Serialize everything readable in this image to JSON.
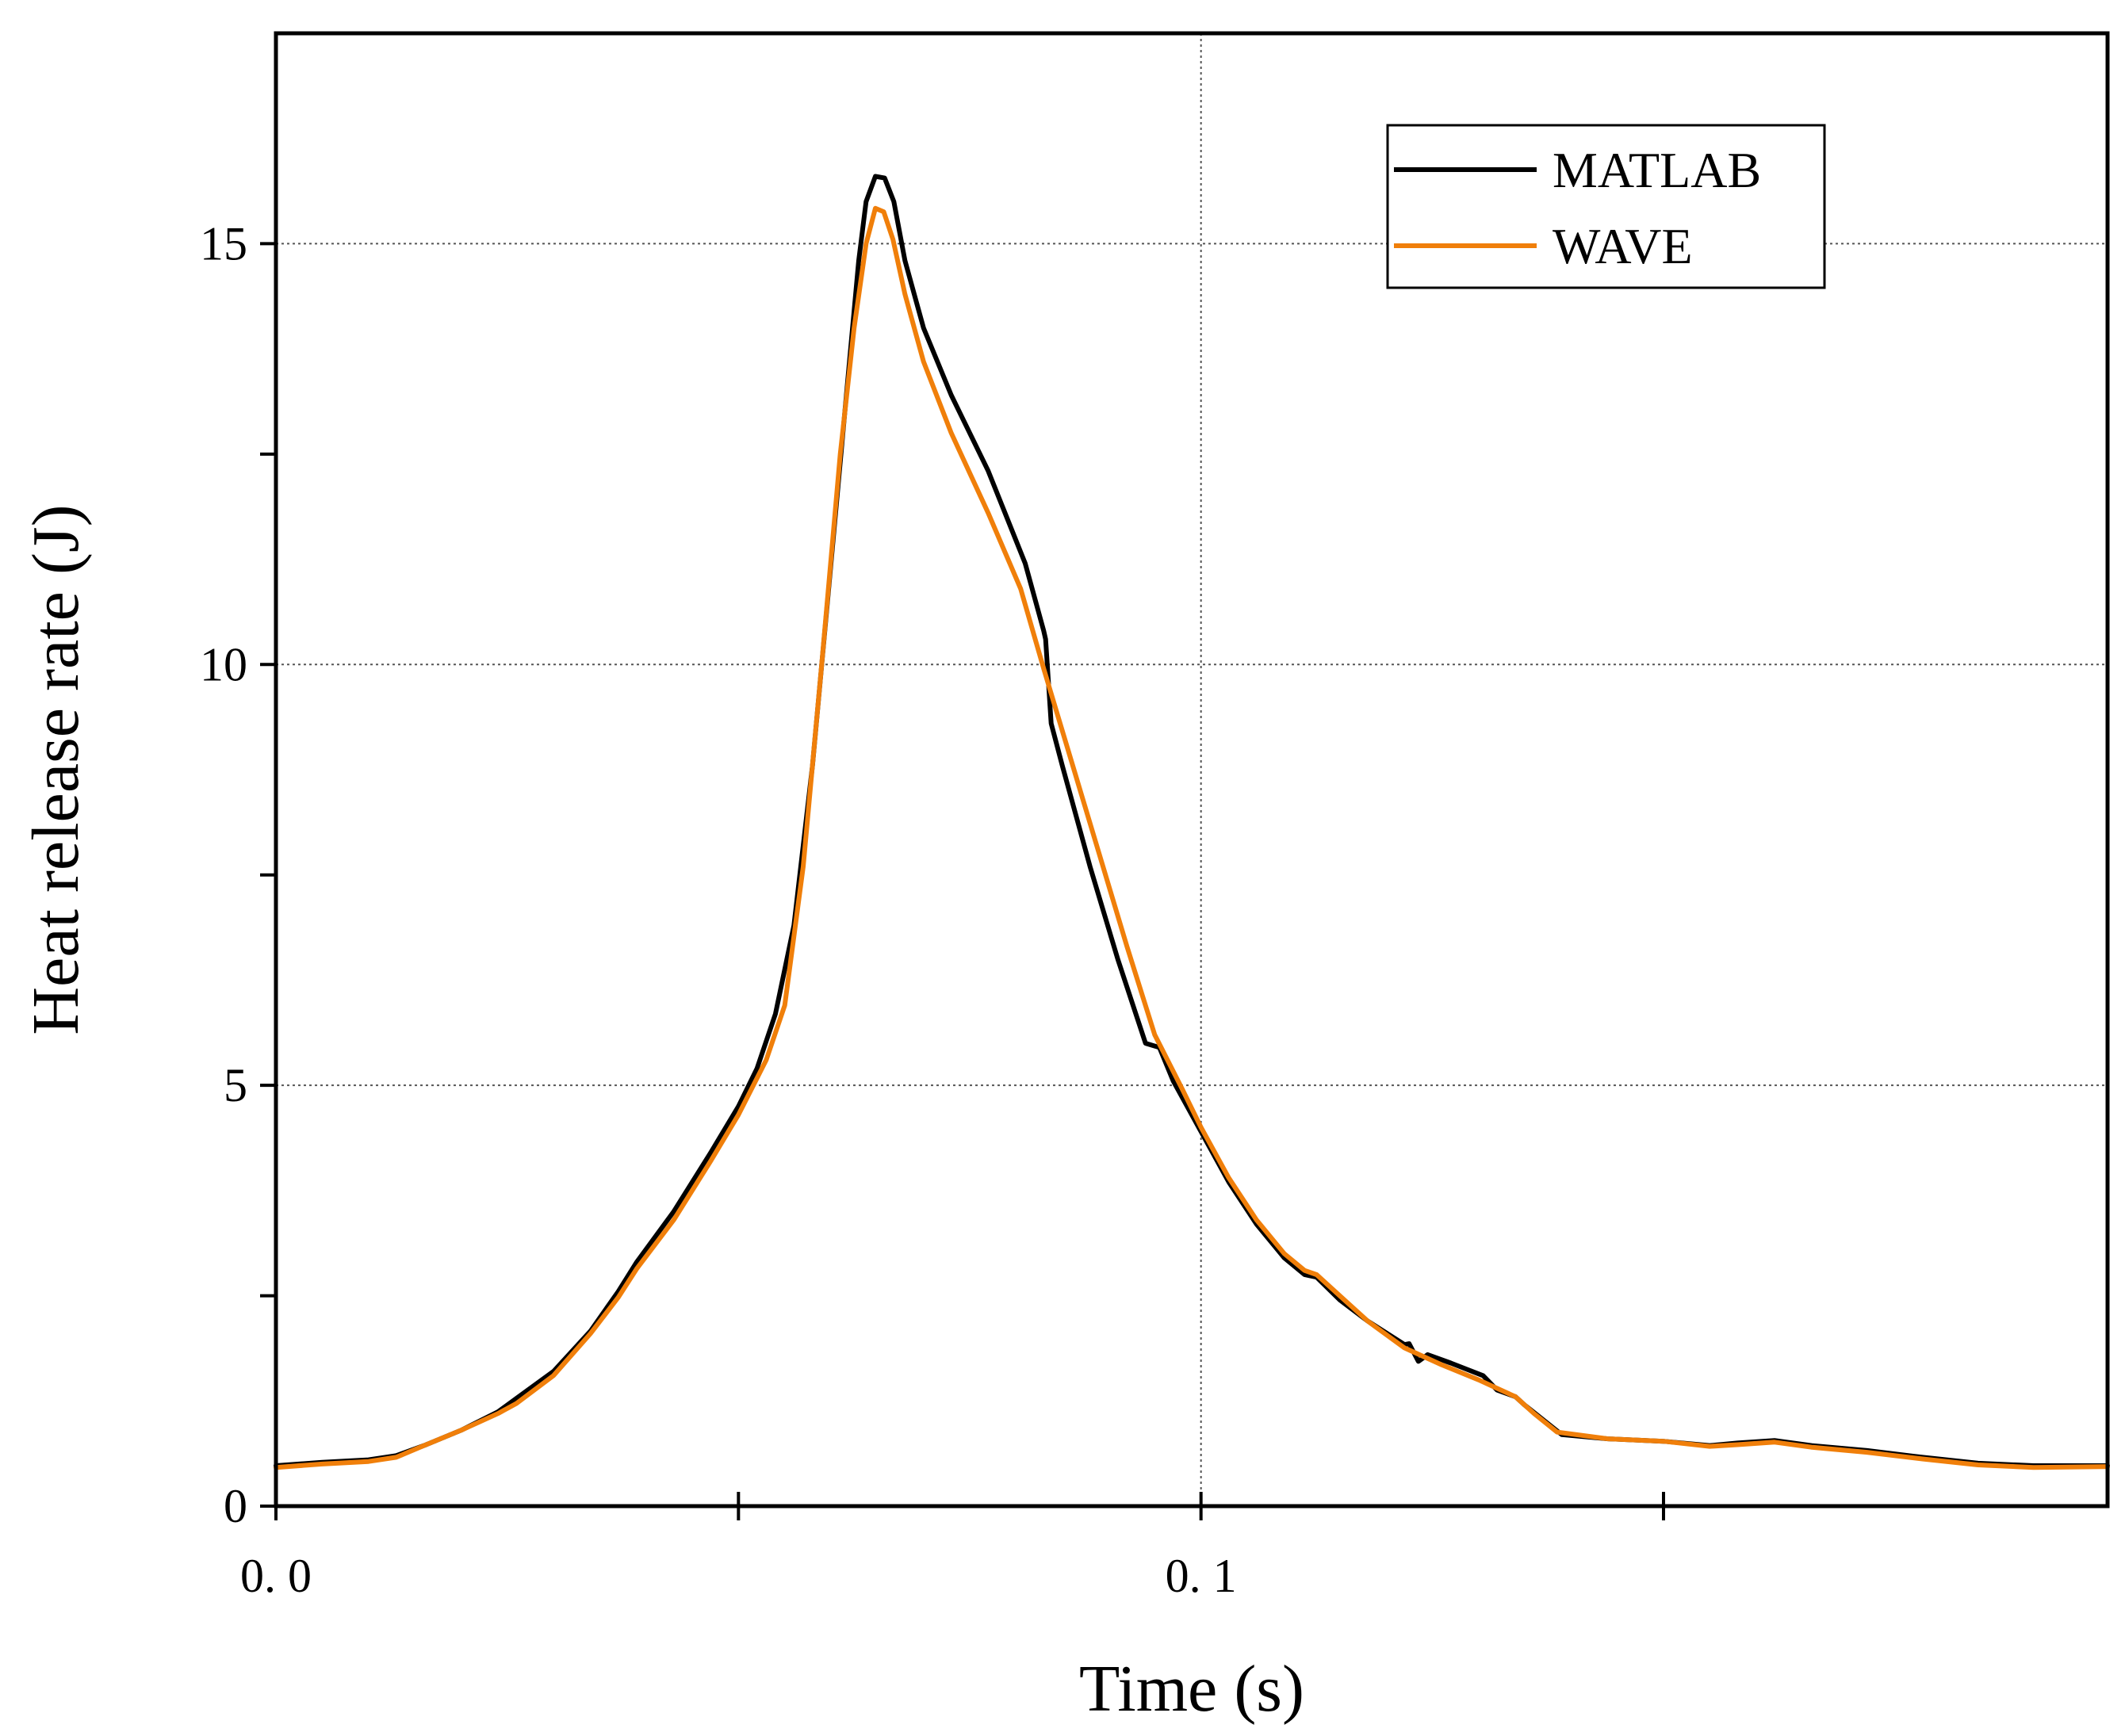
{
  "chart_data": {
    "type": "line",
    "title": "",
    "xlabel": "Time (s)",
    "ylabel": "Heat release rate (J)",
    "xlim": [
      0.0,
      0.198
    ],
    "ylim": [
      0,
      17.5
    ],
    "x_ticks": [
      0.0,
      0.05,
      0.1,
      0.15
    ],
    "x_tick_labels": [
      {
        "value": 0.0,
        "label": "0. 0"
      },
      {
        "value": 0.1,
        "label": "0. 1"
      }
    ],
    "y_ticks": [
      0,
      2.5,
      5,
      7.5,
      10,
      12.5,
      15
    ],
    "y_tick_labels": [
      {
        "value": 0,
        "label": "0"
      },
      {
        "value": 5,
        "label": "5"
      },
      {
        "value": 10,
        "label": "10"
      },
      {
        "value": 15,
        "label": "15"
      }
    ],
    "grid": {
      "x": [
        0.1
      ],
      "y": [
        5,
        10,
        15
      ],
      "style": "dotted"
    },
    "legend": {
      "position": "top-right"
    },
    "series": [
      {
        "name": "MATLAB",
        "color": "#000000",
        "points": [
          [
            0.0,
            0.48
          ],
          [
            0.005,
            0.52
          ],
          [
            0.01,
            0.55
          ],
          [
            0.013,
            0.6
          ],
          [
            0.016,
            0.72
          ],
          [
            0.02,
            0.9
          ],
          [
            0.024,
            1.12
          ],
          [
            0.026,
            1.28
          ],
          [
            0.03,
            1.6
          ],
          [
            0.034,
            2.08
          ],
          [
            0.037,
            2.55
          ],
          [
            0.039,
            2.9
          ],
          [
            0.043,
            3.5
          ],
          [
            0.047,
            4.2
          ],
          [
            0.05,
            4.75
          ],
          [
            0.052,
            5.2
          ],
          [
            0.054,
            5.85
          ],
          [
            0.056,
            6.9
          ],
          [
            0.058,
            8.8
          ],
          [
            0.06,
            11.2
          ],
          [
            0.062,
            13.6
          ],
          [
            0.063,
            14.8
          ],
          [
            0.0638,
            15.5
          ],
          [
            0.0648,
            15.8
          ],
          [
            0.0658,
            15.78
          ],
          [
            0.0668,
            15.5
          ],
          [
            0.068,
            14.8
          ],
          [
            0.07,
            14.0
          ],
          [
            0.073,
            13.2
          ],
          [
            0.077,
            12.3
          ],
          [
            0.081,
            11.2
          ],
          [
            0.083,
            10.4
          ],
          [
            0.0832,
            10.3
          ],
          [
            0.0838,
            9.3
          ],
          [
            0.085,
            8.8
          ],
          [
            0.088,
            7.6
          ],
          [
            0.091,
            6.5
          ],
          [
            0.094,
            5.5
          ],
          [
            0.0955,
            5.45
          ],
          [
            0.097,
            5.05
          ],
          [
            0.1,
            4.45
          ],
          [
            0.103,
            3.85
          ],
          [
            0.106,
            3.35
          ],
          [
            0.109,
            2.95
          ],
          [
            0.1112,
            2.75
          ],
          [
            0.1125,
            2.72
          ],
          [
            0.115,
            2.45
          ],
          [
            0.118,
            2.2
          ],
          [
            0.122,
            1.92
          ],
          [
            0.1225,
            1.93
          ],
          [
            0.1235,
            1.72
          ],
          [
            0.1245,
            1.8
          ],
          [
            0.127,
            1.7
          ],
          [
            0.1305,
            1.55
          ],
          [
            0.132,
            1.38
          ],
          [
            0.134,
            1.3
          ],
          [
            0.135,
            1.2
          ],
          [
            0.139,
            0.85
          ],
          [
            0.144,
            0.8
          ],
          [
            0.15,
            0.77
          ],
          [
            0.155,
            0.72
          ],
          [
            0.158,
            0.75
          ],
          [
            0.162,
            0.78
          ],
          [
            0.166,
            0.72
          ],
          [
            0.172,
            0.66
          ],
          [
            0.178,
            0.58
          ],
          [
            0.184,
            0.51
          ],
          [
            0.19,
            0.48
          ],
          [
            0.198,
            0.48
          ]
        ]
      },
      {
        "name": "WAVE",
        "color": "#f07f0a",
        "points": [
          [
            0.0,
            0.46
          ],
          [
            0.005,
            0.5
          ],
          [
            0.01,
            0.53
          ],
          [
            0.013,
            0.58
          ],
          [
            0.016,
            0.72
          ],
          [
            0.02,
            0.9
          ],
          [
            0.024,
            1.1
          ],
          [
            0.026,
            1.22
          ],
          [
            0.03,
            1.55
          ],
          [
            0.034,
            2.05
          ],
          [
            0.037,
            2.48
          ],
          [
            0.039,
            2.82
          ],
          [
            0.043,
            3.4
          ],
          [
            0.047,
            4.1
          ],
          [
            0.05,
            4.65
          ],
          [
            0.053,
            5.3
          ],
          [
            0.055,
            5.95
          ],
          [
            0.057,
            7.6
          ],
          [
            0.059,
            10.0
          ],
          [
            0.061,
            12.5
          ],
          [
            0.0625,
            14.0
          ],
          [
            0.0638,
            15.0
          ],
          [
            0.0648,
            15.42
          ],
          [
            0.0657,
            15.38
          ],
          [
            0.0667,
            15.05
          ],
          [
            0.068,
            14.4
          ],
          [
            0.07,
            13.6
          ],
          [
            0.073,
            12.75
          ],
          [
            0.077,
            11.8
          ],
          [
            0.0805,
            10.9
          ],
          [
            0.083,
            9.95
          ],
          [
            0.086,
            8.85
          ],
          [
            0.089,
            7.75
          ],
          [
            0.092,
            6.65
          ],
          [
            0.095,
            5.6
          ],
          [
            0.098,
            4.95
          ],
          [
            0.1,
            4.5
          ],
          [
            0.103,
            3.9
          ],
          [
            0.106,
            3.4
          ],
          [
            0.109,
            3.0
          ],
          [
            0.1112,
            2.8
          ],
          [
            0.1125,
            2.75
          ],
          [
            0.115,
            2.5
          ],
          [
            0.118,
            2.2
          ],
          [
            0.122,
            1.88
          ],
          [
            0.126,
            1.68
          ],
          [
            0.13,
            1.5
          ],
          [
            0.132,
            1.4
          ],
          [
            0.134,
            1.3
          ],
          [
            0.136,
            1.1
          ],
          [
            0.1385,
            0.88
          ],
          [
            0.144,
            0.8
          ],
          [
            0.15,
            0.77
          ],
          [
            0.155,
            0.71
          ],
          [
            0.158,
            0.73
          ],
          [
            0.162,
            0.76
          ],
          [
            0.166,
            0.7
          ],
          [
            0.172,
            0.64
          ],
          [
            0.178,
            0.56
          ],
          [
            0.184,
            0.49
          ],
          [
            0.19,
            0.46
          ],
          [
            0.198,
            0.47
          ]
        ]
      }
    ]
  }
}
